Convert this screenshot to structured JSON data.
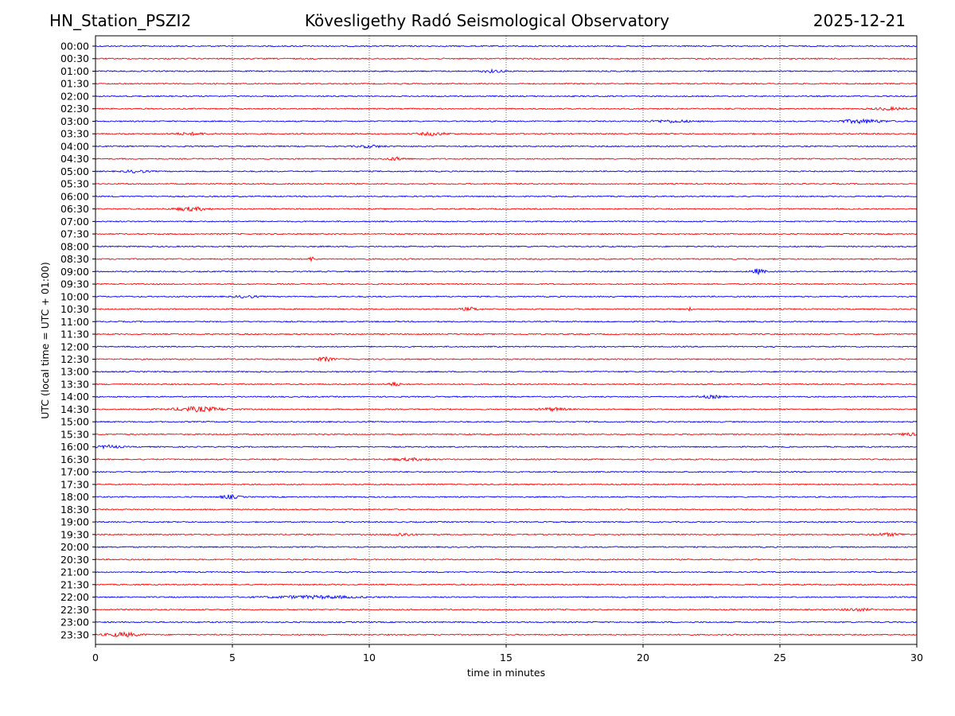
{
  "header": {
    "station": "HN_Station_PSZI2",
    "observatory": "Kövesligethy Radó Seismological Observatory",
    "date": "2025-12-21"
  },
  "chart_data": {
    "type": "line",
    "title": "Kövesligethy Radó Seismological Observatory",
    "xlabel": "time in minutes",
    "ylabel": "UTC (local time = UTC + 01:00)",
    "xlim": [
      0,
      30
    ],
    "x_ticks": [
      "0",
      "5",
      "10",
      "15",
      "20",
      "25",
      "30"
    ],
    "x_tick_values": [
      0,
      5,
      10,
      15,
      20,
      25,
      30
    ],
    "grid": "vertical dotted at x ticks",
    "colors": {
      "even_row": "#0000ff",
      "odd_row": "#ff0000"
    },
    "rows": [
      "00:00",
      "00:30",
      "01:00",
      "01:30",
      "02:00",
      "02:30",
      "03:00",
      "03:30",
      "04:00",
      "04:30",
      "05:00",
      "05:30",
      "06:00",
      "06:30",
      "07:00",
      "07:30",
      "08:00",
      "08:30",
      "09:00",
      "09:30",
      "10:00",
      "10:30",
      "11:00",
      "11:30",
      "12:00",
      "12:30",
      "13:00",
      "13:30",
      "14:00",
      "14:30",
      "15:00",
      "15:30",
      "16:00",
      "16:30",
      "17:00",
      "17:30",
      "18:00",
      "18:30",
      "19:00",
      "19:30",
      "20:00",
      "20:30",
      "21:00",
      "21:30",
      "22:00",
      "22:30",
      "23:00",
      "23:30"
    ],
    "bursts": [
      {
        "row": "01:00",
        "minute": 14.5,
        "width": 1.0,
        "amp": 1.5
      },
      {
        "row": "02:30",
        "minute": 29.0,
        "width": 1.5,
        "amp": 1.4
      },
      {
        "row": "03:00",
        "minute": 28.0,
        "width": 2.0,
        "amp": 2.2
      },
      {
        "row": "03:00",
        "minute": 21.0,
        "width": 2.0,
        "amp": 1.4
      },
      {
        "row": "03:30",
        "minute": 12.3,
        "width": 1.2,
        "amp": 1.8
      },
      {
        "row": "03:30",
        "minute": 3.5,
        "width": 1.5,
        "amp": 1.3
      },
      {
        "row": "04:00",
        "minute": 10.0,
        "width": 1.2,
        "amp": 1.4
      },
      {
        "row": "04:30",
        "minute": 11.0,
        "width": 0.8,
        "amp": 1.8
      },
      {
        "row": "05:00",
        "minute": 1.5,
        "width": 1.0,
        "amp": 1.5
      },
      {
        "row": "06:30",
        "minute": 3.5,
        "width": 1.5,
        "amp": 2.2
      },
      {
        "row": "08:30",
        "minute": 7.9,
        "width": 0.3,
        "amp": 2.5
      },
      {
        "row": "09:00",
        "minute": 24.2,
        "width": 0.6,
        "amp": 3.0
      },
      {
        "row": "10:00",
        "minute": 5.5,
        "width": 1.0,
        "amp": 1.4
      },
      {
        "row": "10:30",
        "minute": 13.7,
        "width": 0.8,
        "amp": 1.8
      },
      {
        "row": "10:30",
        "minute": 21.7,
        "width": 0.2,
        "amp": 2.0
      },
      {
        "row": "12:30",
        "minute": 8.4,
        "width": 0.7,
        "amp": 2.5
      },
      {
        "row": "13:30",
        "minute": 10.9,
        "width": 0.5,
        "amp": 2.5
      },
      {
        "row": "14:00",
        "minute": 22.5,
        "width": 1.0,
        "amp": 1.5
      },
      {
        "row": "14:30",
        "minute": 3.8,
        "width": 2.2,
        "amp": 2.8
      },
      {
        "row": "14:30",
        "minute": 16.7,
        "width": 1.2,
        "amp": 1.8
      },
      {
        "row": "15:30",
        "minute": 29.7,
        "width": 0.8,
        "amp": 1.6
      },
      {
        "row": "16:00",
        "minute": 0.5,
        "width": 1.0,
        "amp": 1.8
      },
      {
        "row": "16:30",
        "minute": 11.5,
        "width": 1.8,
        "amp": 1.3
      },
      {
        "row": "18:00",
        "minute": 4.9,
        "width": 0.8,
        "amp": 2.2
      },
      {
        "row": "19:30",
        "minute": 11.2,
        "width": 1.0,
        "amp": 1.8
      },
      {
        "row": "19:30",
        "minute": 29.0,
        "width": 1.5,
        "amp": 1.5
      },
      {
        "row": "22:00",
        "minute": 8.0,
        "width": 4.0,
        "amp": 1.6
      },
      {
        "row": "22:30",
        "minute": 27.8,
        "width": 1.2,
        "amp": 1.5
      },
      {
        "row": "23:30",
        "minute": 1.0,
        "width": 1.5,
        "amp": 2.5
      }
    ]
  }
}
